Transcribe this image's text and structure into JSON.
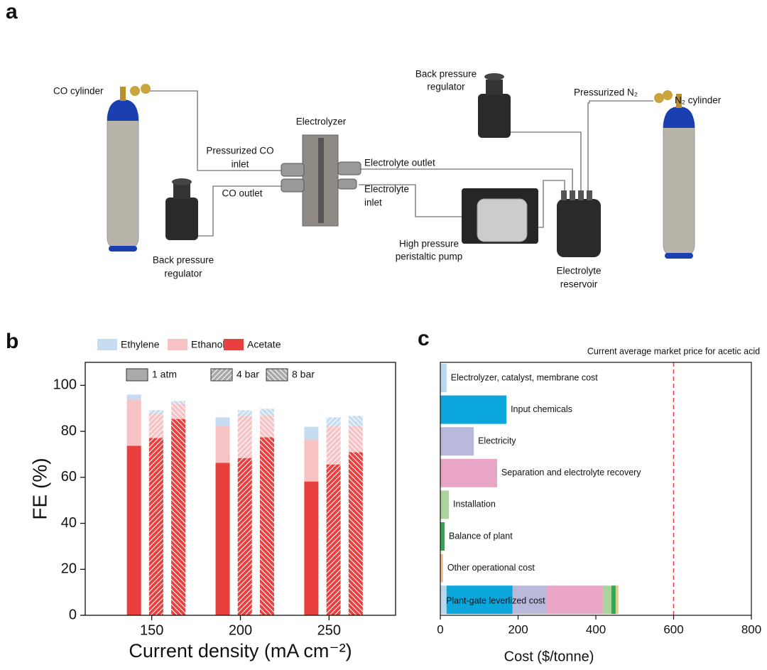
{
  "panel_letters": [
    "a",
    "b",
    "c"
  ],
  "diagram": {
    "labels": [
      [
        "CO cylinder"
      ],
      [
        "Electrolyzer"
      ],
      [
        "Pressurized CO",
        "inlet"
      ],
      [
        "CO outlet"
      ],
      [
        "Back pressure",
        "regulator"
      ],
      [
        "Electrolyte outlet"
      ],
      [
        "Electrolyte",
        "inlet"
      ],
      [
        "High pressure",
        "peristaltic pump"
      ],
      [
        "Back pressure",
        "regulator"
      ],
      [
        "Pressurized N₂"
      ],
      [
        "N₂ cylinder"
      ],
      [
        "Electrolyte",
        "reservoir"
      ]
    ]
  },
  "chart_data": [
    {
      "type": "stacked_bar",
      "xlabel": "Current density (mA cm⁻²)",
      "ylabel": "FE (%)",
      "x": [
        140,
        152.5,
        165,
        190,
        202.5,
        215,
        240,
        252.5,
        265
      ],
      "xlim": [
        112.5,
        287.5
      ],
      "xticks": [
        150,
        200,
        250
      ],
      "ylim": [
        0,
        110
      ],
      "yticks": [
        0,
        20,
        40,
        60,
        80,
        100
      ],
      "series": [
        {
          "name": "Ethylene",
          "color": "#c6dcf0",
          "values": [
            2.2,
            1.6,
            1.2,
            3.7,
            2.5,
            2.8,
            5.5,
            3.7,
            4.3
          ]
        },
        {
          "name": "Ethanol",
          "color": "#f7c2c4",
          "values": [
            20.1,
            10.5,
            6.6,
            16.1,
            18.3,
            9.6,
            18.3,
            16.8,
            11.5
          ]
        },
        {
          "name": "Acetate",
          "color": "#e8403f",
          "values": [
            73.7,
            77.1,
            85.4,
            66.3,
            68.4,
            77.4,
            58.2,
            65.6,
            70.9
          ]
        }
      ],
      "pattern_legend": [
        "1 atm",
        "4 bar",
        "8 bar"
      ],
      "bar_pattern": [
        0,
        1,
        2,
        0,
        1,
        2,
        0,
        1,
        2
      ]
    },
    {
      "type": "hbar",
      "xlabel": "Cost ($/tonne)",
      "categories": [
        "Electrolyzer, catalyst, membrane cost",
        "Input chemicals",
        "Electricity",
        "Separation and electrolyte recovery",
        "Installation",
        "Balance of plant",
        "Other operational cost"
      ],
      "values": [
        16,
        170,
        86,
        146,
        22,
        11,
        7
      ],
      "colors": [
        "#b8d8ee",
        "#0aa6dc",
        "#b9b9dc",
        "#e9a5c6",
        "#a9d59a",
        "#2fa84f",
        "#f0c08e"
      ],
      "total_label": "Plant-gate leverlized cost",
      "xlim": [
        0,
        800
      ],
      "xticks": [
        0,
        200,
        400,
        600,
        800
      ],
      "reference_line": {
        "value": 600,
        "label": "Current average market price for acetic acid",
        "color": "#e8403f"
      }
    }
  ]
}
